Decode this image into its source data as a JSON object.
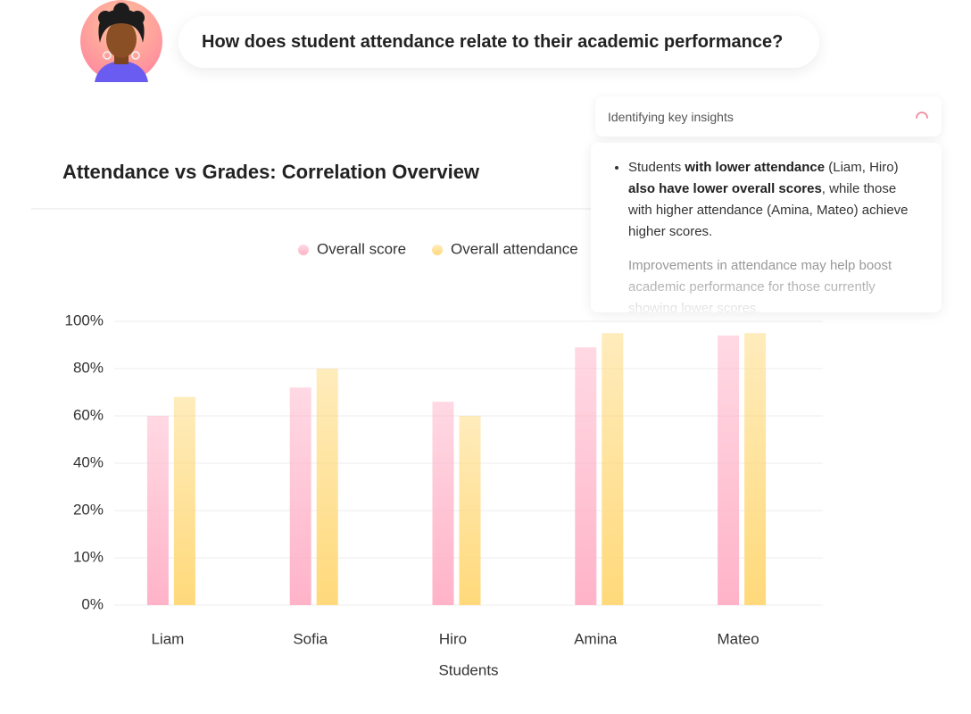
{
  "question": "How does student attendance relate to their academic performance?",
  "status": "Identifying key insights",
  "insights": [
    {
      "parts": [
        "Students ",
        "with lower attendance",
        " (Liam, Hiro) ",
        "also have lower overall scores",
        ", while those with higher attendance (Amina, Mateo) achieve higher scores."
      ]
    },
    {
      "parts": [
        "Improvements in attendance may help boost academic performance for those currently showing lower scores."
      ]
    }
  ],
  "chart_data": {
    "type": "bar",
    "title": "Attendance vs Grades: Correlation Overview",
    "x_label": "Students",
    "categories": [
      "Liam",
      "Sofia",
      "Hiro",
      "Amina",
      "Mateo"
    ],
    "series": [
      {
        "name": "Overall score",
        "color": "#ffb3c8",
        "values": [
          60,
          72,
          66,
          89,
          94
        ]
      },
      {
        "name": "Overall attendance",
        "color": "#ffd97a",
        "values": [
          68,
          80,
          60,
          95,
          95
        ]
      }
    ],
    "ylim": [
      0,
      100
    ],
    "yticks": [
      {
        "value": 0,
        "label": "0%"
      },
      {
        "value": 10,
        "label": "10%"
      },
      {
        "value": 20,
        "label": "20%"
      },
      {
        "value": 40,
        "label": "40%"
      },
      {
        "value": 60,
        "label": "60%"
      },
      {
        "value": 80,
        "label": "80%"
      },
      {
        "value": 100,
        "label": "100%"
      }
    ],
    "grid": true
  }
}
